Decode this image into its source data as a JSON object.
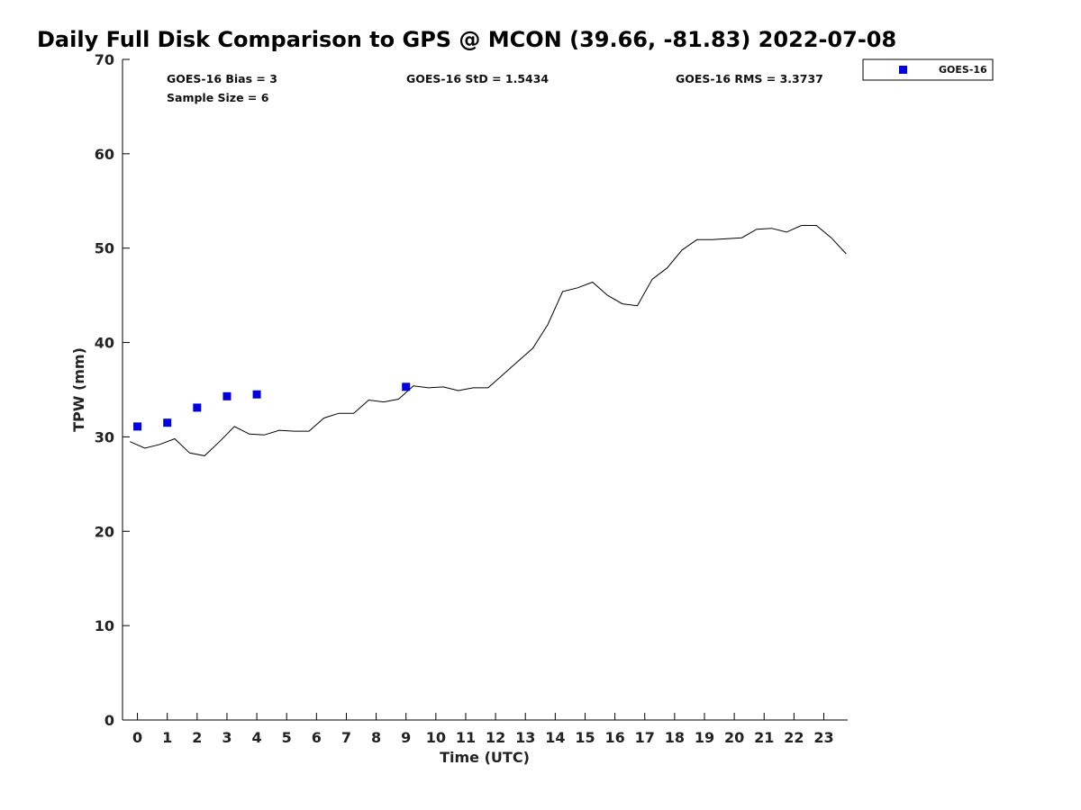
{
  "chart_data": {
    "type": "scatter",
    "title": "Daily Full Disk Comparison to GPS @ MCON (39.66, -81.83) 2022-07-08",
    "xlabel": "Time (UTC)",
    "ylabel": "TPW (mm)",
    "xlim": [
      -0.5,
      23.8
    ],
    "ylim": [
      0,
      70
    ],
    "xticks": [
      "0",
      "1",
      "2",
      "3",
      "4",
      "5",
      "6",
      "7",
      "8",
      "9",
      "10",
      "11",
      "12",
      "13",
      "14",
      "15",
      "16",
      "17",
      "18",
      "19",
      "20",
      "21",
      "22",
      "23"
    ],
    "yticks": [
      "0",
      "10",
      "20",
      "30",
      "40",
      "50",
      "60",
      "70"
    ],
    "grid": false,
    "legend_position": "top-right, outside plot",
    "stats": {
      "bias": "GOES-16 Bias = 3",
      "std": "GOES-16 StD = 1.5434",
      "rms": "GOES-16 RMS = 3.3737",
      "sample_size": "Sample Size = 6"
    },
    "series": [
      {
        "name": "GOES-16",
        "kind": "scatter",
        "marker": "square",
        "color": "#0000dd",
        "x": [
          0,
          1,
          2,
          3,
          4,
          9
        ],
        "y": [
          31.1,
          31.5,
          33.1,
          34.3,
          34.5,
          35.3
        ]
      },
      {
        "kind": "line",
        "color": "#000000",
        "x": [
          -0.25,
          0.25,
          0.75,
          1.25,
          1.75,
          2.25,
          2.75,
          3.25,
          3.75,
          4.25,
          4.75,
          5.25,
          5.75,
          6.25,
          6.75,
          7.25,
          7.75,
          8.25,
          8.75,
          9.25,
          9.75,
          10.25,
          10.75,
          11.25,
          11.75,
          12.25,
          12.75,
          13.25,
          13.75,
          14.25,
          14.75,
          15.25,
          15.75,
          16.25,
          16.75,
          17.25,
          17.75,
          18.25,
          18.75,
          19.25,
          19.75,
          20.25,
          20.75,
          21.25,
          21.75,
          22.25,
          22.75,
          23.25,
          23.75
        ],
        "y": [
          29.5,
          28.8,
          29.2,
          29.8,
          28.3,
          28.0,
          29.5,
          31.1,
          30.3,
          30.2,
          30.7,
          30.6,
          30.6,
          32.0,
          32.5,
          32.5,
          33.9,
          33.7,
          34.0,
          35.4,
          35.2,
          35.3,
          34.9,
          35.2,
          35.2,
          36.6,
          38.0,
          39.4,
          41.9,
          45.4,
          45.8,
          46.4,
          45.0,
          44.1,
          43.9,
          46.7,
          47.9,
          49.8,
          50.9,
          50.9,
          51.0,
          51.1,
          52.0,
          52.1,
          51.7,
          52.4,
          52.4,
          51.1,
          49.4
        ]
      }
    ]
  }
}
